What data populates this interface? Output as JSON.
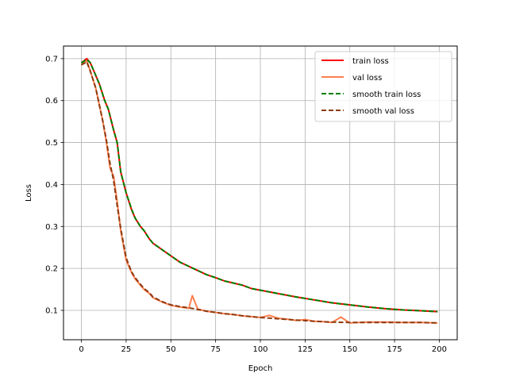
{
  "chart_data": {
    "type": "line",
    "title": "",
    "xlabel": "Epoch",
    "ylabel": "Loss",
    "xlim": [
      -10,
      210
    ],
    "ylim": [
      0.03,
      0.73
    ],
    "xticks": [
      0,
      25,
      50,
      75,
      100,
      125,
      150,
      175,
      200
    ],
    "yticks": [
      0.1,
      0.2,
      0.3,
      0.4,
      0.5,
      0.6,
      0.7
    ],
    "xtick_labels": [
      "0",
      "25",
      "50",
      "75",
      "100",
      "125",
      "150",
      "175",
      "200"
    ],
    "ytick_labels": [
      "0.1",
      "0.2",
      "0.3",
      "0.4",
      "0.5",
      "0.6",
      "0.7"
    ],
    "grid": true,
    "legend_position": "upper right",
    "series": [
      {
        "name": "train loss",
        "color": "#ff0000",
        "style": "solid",
        "x": [
          0,
          3,
          5,
          8,
          10,
          13,
          15,
          18,
          20,
          22,
          25,
          28,
          30,
          33,
          35,
          38,
          40,
          45,
          50,
          55,
          60,
          65,
          70,
          75,
          80,
          85,
          90,
          95,
          100,
          110,
          120,
          130,
          140,
          150,
          160,
          170,
          180,
          190,
          199
        ],
        "y": [
          0.69,
          0.7,
          0.69,
          0.66,
          0.64,
          0.6,
          0.58,
          0.53,
          0.5,
          0.43,
          0.38,
          0.34,
          0.32,
          0.3,
          0.29,
          0.27,
          0.26,
          0.245,
          0.23,
          0.215,
          0.205,
          0.195,
          0.185,
          0.178,
          0.17,
          0.165,
          0.16,
          0.152,
          0.148,
          0.14,
          0.132,
          0.125,
          0.118,
          0.113,
          0.108,
          0.104,
          0.101,
          0.099,
          0.097
        ]
      },
      {
        "name": "val loss",
        "color": "#ff7f50",
        "style": "solid",
        "x": [
          0,
          3,
          5,
          8,
          10,
          12,
          14,
          16,
          18,
          20,
          22,
          25,
          28,
          30,
          33,
          35,
          38,
          40,
          45,
          50,
          55,
          60,
          62,
          65,
          70,
          75,
          80,
          85,
          90,
          95,
          100,
          105,
          110,
          115,
          120,
          125,
          130,
          135,
          140,
          145,
          150,
          155,
          160,
          170,
          180,
          190,
          199
        ],
        "y": [
          0.685,
          0.695,
          0.67,
          0.63,
          0.59,
          0.55,
          0.5,
          0.44,
          0.42,
          0.36,
          0.29,
          0.22,
          0.19,
          0.175,
          0.16,
          0.15,
          0.14,
          0.13,
          0.12,
          0.112,
          0.108,
          0.105,
          0.135,
          0.103,
          0.098,
          0.095,
          0.092,
          0.09,
          0.087,
          0.085,
          0.083,
          0.088,
          0.081,
          0.079,
          0.076,
          0.078,
          0.074,
          0.073,
          0.071,
          0.084,
          0.07,
          0.071,
          0.072,
          0.072,
          0.071,
          0.071,
          0.07
        ]
      },
      {
        "name": "smooth train loss",
        "color": "#008000",
        "style": "dashed",
        "x": [
          0,
          3,
          5,
          8,
          10,
          13,
          15,
          18,
          20,
          22,
          25,
          28,
          30,
          33,
          35,
          38,
          40,
          45,
          50,
          55,
          60,
          65,
          70,
          75,
          80,
          85,
          90,
          95,
          100,
          110,
          120,
          130,
          140,
          150,
          160,
          170,
          180,
          190,
          199
        ],
        "y": [
          0.69,
          0.698,
          0.69,
          0.66,
          0.64,
          0.6,
          0.58,
          0.53,
          0.5,
          0.43,
          0.38,
          0.342,
          0.32,
          0.3,
          0.29,
          0.27,
          0.26,
          0.245,
          0.23,
          0.215,
          0.205,
          0.195,
          0.185,
          0.178,
          0.17,
          0.165,
          0.16,
          0.152,
          0.148,
          0.14,
          0.132,
          0.125,
          0.118,
          0.113,
          0.108,
          0.104,
          0.101,
          0.099,
          0.097
        ]
      },
      {
        "name": "smooth val loss",
        "color": "#8b3a0f",
        "style": "dashed",
        "x": [
          0,
          3,
          5,
          8,
          10,
          12,
          14,
          16,
          18,
          20,
          22,
          25,
          28,
          30,
          33,
          35,
          38,
          40,
          45,
          50,
          55,
          60,
          65,
          70,
          75,
          80,
          85,
          90,
          95,
          100,
          110,
          120,
          130,
          140,
          150,
          160,
          170,
          180,
          190,
          199
        ],
        "y": [
          0.685,
          0.692,
          0.67,
          0.63,
          0.59,
          0.55,
          0.505,
          0.45,
          0.41,
          0.35,
          0.295,
          0.225,
          0.192,
          0.178,
          0.162,
          0.152,
          0.142,
          0.132,
          0.121,
          0.113,
          0.109,
          0.106,
          0.102,
          0.098,
          0.095,
          0.092,
          0.09,
          0.087,
          0.085,
          0.083,
          0.08,
          0.077,
          0.074,
          0.072,
          0.071,
          0.071,
          0.071,
          0.071,
          0.071,
          0.07
        ]
      }
    ]
  }
}
